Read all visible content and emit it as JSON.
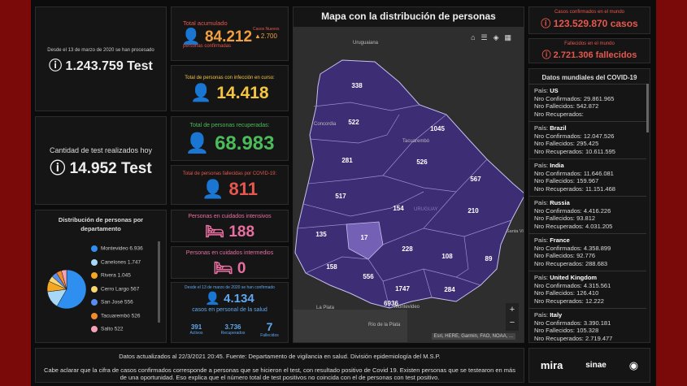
{
  "tests": {
    "caption": "Desde el 13 de marzo de 2020 se han procesado",
    "value": "1.243.759 Test"
  },
  "tests_today": {
    "caption": "Cantidad de test realizados hoy",
    "value": "14.952 Test"
  },
  "distribution": {
    "title": "Distribución de personas por departamento",
    "items": [
      {
        "name": "Montevideo",
        "value": 6936,
        "label": "6.936",
        "color": "#2f8ff0"
      },
      {
        "name": "Canelones",
        "value": 1747,
        "label": "1.747",
        "color": "#a8d8f8"
      },
      {
        "name": "Rivera",
        "value": 1045,
        "label": "1.045",
        "color": "#f5a623"
      },
      {
        "name": "Cerro Largo",
        "value": 567,
        "label": "567",
        "color": "#f7d774"
      },
      {
        "name": "San José",
        "value": 556,
        "label": "556",
        "color": "#5b8def"
      },
      {
        "name": "Tacuarembó",
        "value": 526,
        "label": "526",
        "color": "#f08c2e"
      },
      {
        "name": "Salto",
        "value": 522,
        "label": "522",
        "color": "#f4a3b5"
      }
    ]
  },
  "confirmed": {
    "caption": "Total acumulado",
    "value": "84.212",
    "subcaption": "personas confirmadas",
    "new_caption": "Casos Nuevos",
    "new_value": "2.700"
  },
  "active": {
    "caption": "Total de personas con infección en curso:",
    "value": "14.418"
  },
  "recovered": {
    "caption": "Total de personas recuperadas:",
    "value": "68.983"
  },
  "deceased": {
    "caption": "Total de personas fallecidas por COVID-19:",
    "value": "811"
  },
  "icu": {
    "caption": "Personas en cuidados intensivos",
    "value": "188"
  },
  "intermediate": {
    "caption": "Personas en cuidados intermedios",
    "value": "0"
  },
  "health_staff": {
    "caption": "Desde el 13 de marzo de 2020 se han confirmado",
    "value": "4.134",
    "subcaption": "casos en personal de la salud",
    "stats": [
      {
        "value": "391",
        "label": "Activos"
      },
      {
        "value": "3.736",
        "label": "Recuperados"
      },
      {
        "value": "7",
        "label": "Fallecidos"
      }
    ]
  },
  "map": {
    "title": "Mapa con la distribución de personas",
    "departments": [
      "338",
      "522",
      "1045",
      "281",
      "526",
      "567",
      "517",
      "154",
      "210",
      "135",
      "17",
      "228",
      "108",
      "89",
      "158",
      "556",
      "1747",
      "284",
      "6936"
    ],
    "places": [
      "Uruguaiana",
      "Concordia",
      "Tacuarembó",
      "URUGUAY",
      "Santa Vitória do Palmar",
      "La Plata",
      "Montevideo",
      "Río de la Plata"
    ],
    "attribution": "Esri, HERE, Garmin, FAO, NOAA, ..."
  },
  "world": {
    "confirmed_caption": "Casos confirmados en el mundo",
    "confirmed_value": "123.529.870 casos",
    "deaths_caption": "Fallecidos en el mundo",
    "deaths_value": "2.721.306 fallecidos",
    "title": "Datos mundiales del COVID-19",
    "labels": {
      "country": "País:",
      "confirmed": "Nro Confirmados:",
      "deaths": "Nro Fallecidos:",
      "recovered": "Nro Recuperados:"
    },
    "countries": [
      {
        "country": "US",
        "confirmed": "29.861.965",
        "deaths": "542.872"
      },
      {
        "country": "Brazil",
        "confirmed": "12.047.526",
        "deaths": "295.425",
        "recovered": "10.611.595"
      },
      {
        "country": "India",
        "confirmed": "11.646.081",
        "deaths": "159.967",
        "recovered": "11.151.468"
      },
      {
        "country": "Russia",
        "confirmed": "4.416.226",
        "deaths": "93.812",
        "recovered": "4.031.205"
      },
      {
        "country": "France",
        "confirmed": "4.358.899",
        "deaths": "92.776",
        "recovered": "288.683"
      },
      {
        "country": "United Kingdom",
        "confirmed": "4.315.561",
        "deaths": "126.410",
        "recovered": "12.222"
      },
      {
        "country": "Italy",
        "confirmed": "3.390.181",
        "deaths": "105.328",
        "recovered": "2.719.477"
      }
    ]
  },
  "footer": {
    "updated": "Datos actualizados al 22/3/2021 20:45. Fuente: Departamento de vigilancia en salud. División epidemiología del M.S.P.",
    "note": "Cabe aclarar que la cifra de casos confirmados corresponde a personas que se hicieron el test, con resultado positivo de Covid 19. Existen personas que se testearon en más de una oportunidad. Eso explica que el número total de test positivos no coincida con el de personas con test positivo.",
    "logos": [
      "mira",
      "sinae"
    ]
  }
}
